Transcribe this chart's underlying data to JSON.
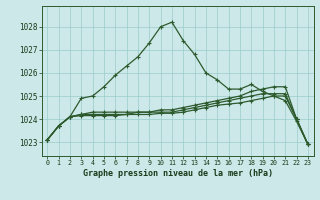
{
  "title": "Graphe pression niveau de la mer (hPa)",
  "bg_color": "#cce8e8",
  "grid_color": "#99cccc",
  "line_color": "#2d5a2d",
  "x_ticks": [
    0,
    1,
    2,
    3,
    4,
    5,
    6,
    7,
    8,
    9,
    10,
    11,
    12,
    13,
    14,
    15,
    16,
    17,
    18,
    19,
    20,
    21,
    22,
    23
  ],
  "ylim": [
    1022.4,
    1028.9
  ],
  "yticks": [
    1023,
    1024,
    1025,
    1026,
    1027,
    1028
  ],
  "series": [
    [
      1023.1,
      1023.7,
      1024.1,
      1024.9,
      1025.0,
      1025.4,
      1025.9,
      1026.3,
      1026.7,
      1027.3,
      1028.0,
      1028.2,
      1027.4,
      1026.8,
      1026.0,
      1025.7,
      1025.3,
      1025.3,
      1025.5,
      1025.2,
      1025.0,
      1024.8,
      1023.9,
      1022.9
    ],
    [
      1023.1,
      1023.7,
      1024.1,
      1024.2,
      1024.3,
      1024.3,
      1024.3,
      1024.3,
      1024.3,
      1024.3,
      1024.4,
      1024.4,
      1024.5,
      1024.6,
      1024.7,
      1024.8,
      1024.9,
      1025.0,
      1025.2,
      1025.3,
      1025.4,
      1025.4,
      1024.0,
      1022.9
    ],
    [
      1023.1,
      1023.7,
      1024.1,
      1024.2,
      1024.2,
      1024.2,
      1024.2,
      1024.2,
      1024.3,
      1024.3,
      1024.3,
      1024.3,
      1024.4,
      1024.5,
      1024.6,
      1024.7,
      1024.8,
      1024.9,
      1025.0,
      1025.1,
      1025.1,
      1025.1,
      1024.0,
      1022.9
    ],
    [
      1023.1,
      1023.7,
      1024.1,
      1024.15,
      1024.15,
      1024.15,
      1024.15,
      1024.2,
      1024.2,
      1024.2,
      1024.25,
      1024.25,
      1024.3,
      1024.4,
      1024.5,
      1024.6,
      1024.65,
      1024.7,
      1024.8,
      1024.9,
      1025.0,
      1025.0,
      1024.0,
      1022.9
    ]
  ]
}
